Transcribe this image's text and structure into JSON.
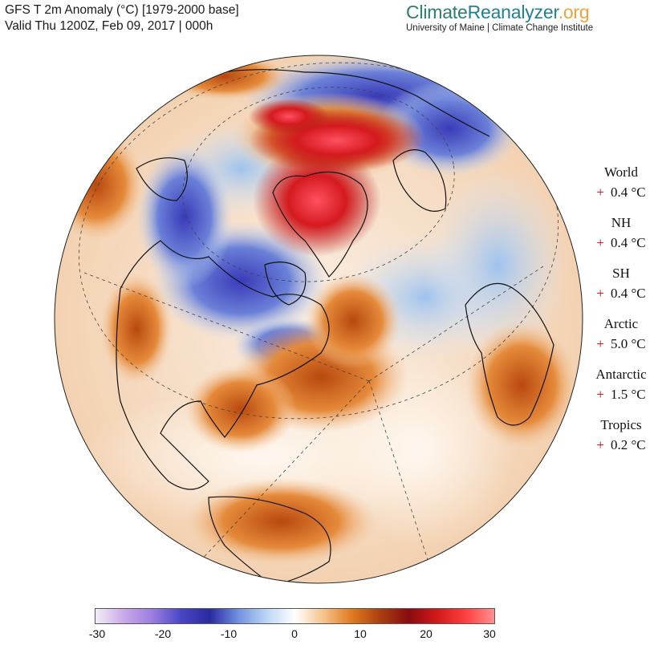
{
  "header": {
    "title": "GFS T 2m Anomaly (°C) [1979-2000 base]",
    "valid": "Valid Thu 1200Z, Feb 09, 2017 | 000h"
  },
  "brand": {
    "part1": "Climate",
    "part2": "Reanalyzer",
    "part3": ".org",
    "subtitle": "University of Maine | Climate Change Institute",
    "colors": {
      "part1": "#2a7f6a",
      "part2": "#1f7f96",
      "part3": "#f0a23a"
    }
  },
  "stats": [
    {
      "name": "World",
      "sign": "+",
      "value": "0.4 °C"
    },
    {
      "name": "NH",
      "sign": "+",
      "value": "0.4 °C"
    },
    {
      "name": "SH",
      "sign": "+",
      "value": "0.4 °C"
    },
    {
      "name": "Arctic",
      "sign": "+",
      "value": "5.0 °C"
    },
    {
      "name": "Antarctic",
      "sign": "+",
      "value": "1.5 °C"
    },
    {
      "name": "Tropics",
      "sign": "+",
      "value": "0.2 °C"
    }
  ],
  "colorbar": {
    "ticks": [
      "-30",
      "-20",
      "-10",
      "0",
      "10",
      "20",
      "30"
    ],
    "min": -30,
    "max": 30,
    "colors": [
      "#f2eef6",
      "#c9a9e8",
      "#9a7de0",
      "#4a46c8",
      "#2a2aa0",
      "#6f8fe0",
      "#bcd6f4",
      "#ffffff",
      "#f5c48c",
      "#e07a1e",
      "#a8400f",
      "#8b0a10",
      "#d11a1a",
      "#ff4040",
      "#ff9090"
    ]
  },
  "map": {
    "projection": "orthographic",
    "palette": {
      "ocean_neutral": "#f6f0ea",
      "warm": "#e8893c",
      "hot": "#d92020",
      "cold": "#4a52c8",
      "cool": "#bcd4f2",
      "land_outline": "#111111"
    }
  }
}
